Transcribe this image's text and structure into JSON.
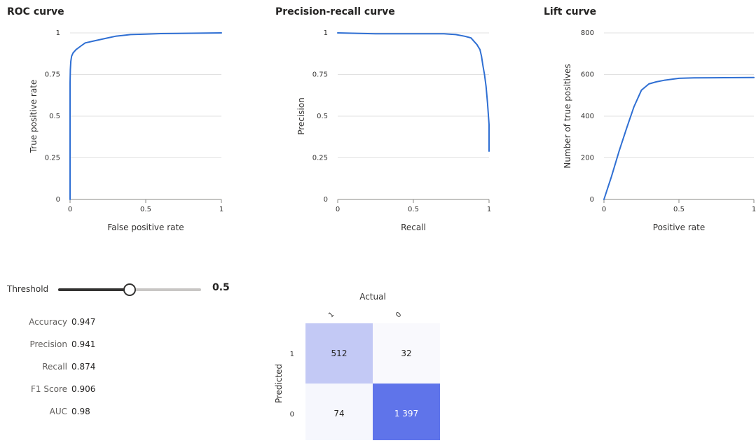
{
  "chart_data": [
    {
      "type": "line",
      "title": "ROC curve",
      "xlabel": "False positive rate",
      "ylabel": "True positive rate",
      "xlim": [
        0,
        1
      ],
      "ylim": [
        0,
        1
      ],
      "xticks": [
        "0",
        "0.5",
        "1"
      ],
      "yticks": [
        "0",
        "0.25",
        "0.5",
        "0.75",
        "1"
      ],
      "grid": true,
      "series": [
        {
          "color": "#2f6fd3",
          "x": [
            0,
            0,
            0.002,
            0.005,
            0.01,
            0.02,
            0.04,
            0.07,
            0.1,
            0.15,
            0.2,
            0.25,
            0.3,
            0.35,
            0.4,
            0.5,
            0.6,
            0.8,
            1.0
          ],
          "y": [
            0,
            0.7,
            0.78,
            0.83,
            0.86,
            0.88,
            0.9,
            0.92,
            0.94,
            0.95,
            0.96,
            0.97,
            0.98,
            0.985,
            0.99,
            0.993,
            0.996,
            0.998,
            1.0
          ]
        }
      ]
    },
    {
      "type": "line",
      "title": "Precision-recall curve",
      "xlabel": "Recall",
      "ylabel": "Precision",
      "xlim": [
        0,
        1
      ],
      "ylim": [
        0,
        1
      ],
      "xticks": [
        "0",
        "0.5",
        "1"
      ],
      "yticks": [
        "0",
        "0.25",
        "0.5",
        "0.75",
        "1"
      ],
      "grid": true,
      "series": [
        {
          "color": "#2f6fd3",
          "x": [
            0,
            0.25,
            0.5,
            0.7,
            0.78,
            0.84,
            0.88,
            0.9,
            0.92,
            0.94,
            0.95,
            0.96,
            0.97,
            0.98,
            0.99,
            1.0,
            1.0
          ],
          "y": [
            1.0,
            0.995,
            0.995,
            0.995,
            0.99,
            0.98,
            0.97,
            0.95,
            0.93,
            0.9,
            0.86,
            0.8,
            0.75,
            0.68,
            0.58,
            0.45,
            0.29
          ]
        }
      ]
    },
    {
      "type": "line",
      "title": "Lift curve",
      "xlabel": "Positive rate",
      "ylabel": "Number of true positives",
      "xlim": [
        0,
        1
      ],
      "ylim": [
        0,
        800
      ],
      "xticks": [
        "0",
        "0.5",
        "1"
      ],
      "yticks": [
        "0",
        "200",
        "400",
        "600",
        "800"
      ],
      "grid": true,
      "series": [
        {
          "color": "#2f6fd3",
          "x": [
            0,
            0.05,
            0.1,
            0.15,
            0.2,
            0.25,
            0.3,
            0.35,
            0.4,
            0.5,
            0.6,
            0.8,
            1.0
          ],
          "y": [
            0,
            110,
            230,
            340,
            445,
            525,
            555,
            565,
            572,
            582,
            584,
            585,
            586
          ]
        }
      ]
    },
    {
      "type": "heatmap",
      "title": "",
      "xlabel": "Actual",
      "ylabel": "Predicted",
      "col_labels": [
        "1",
        "0"
      ],
      "row_labels": [
        "1",
        "0"
      ],
      "values": [
        [
          512,
          32
        ],
        [
          74,
          1397
        ]
      ],
      "display_values": [
        [
          "512",
          "32"
        ],
        [
          "74",
          "1 397"
        ]
      ],
      "colors": [
        [
          "#c3c9f5",
          "#f9f9fd"
        ],
        [
          "#f6f7fd",
          "#5f74ea"
        ]
      ]
    }
  ],
  "threshold": {
    "label": "Threshold",
    "value": 0.5,
    "min": 0,
    "max": 1,
    "display_value": "0.5"
  },
  "metrics": [
    {
      "name": "Accuracy",
      "value": "0.947"
    },
    {
      "name": "Precision",
      "value": "0.941"
    },
    {
      "name": "Recall",
      "value": "0.874"
    },
    {
      "name": "F1 Score",
      "value": "0.906"
    },
    {
      "name": "AUC",
      "value": "0.98"
    }
  ],
  "colors": {
    "curve": "#2f6fd3",
    "grid": "#e1e1e1",
    "axis": "#8a8886",
    "slider_track": "#c8c6c4",
    "slider_fill": "#323130"
  }
}
